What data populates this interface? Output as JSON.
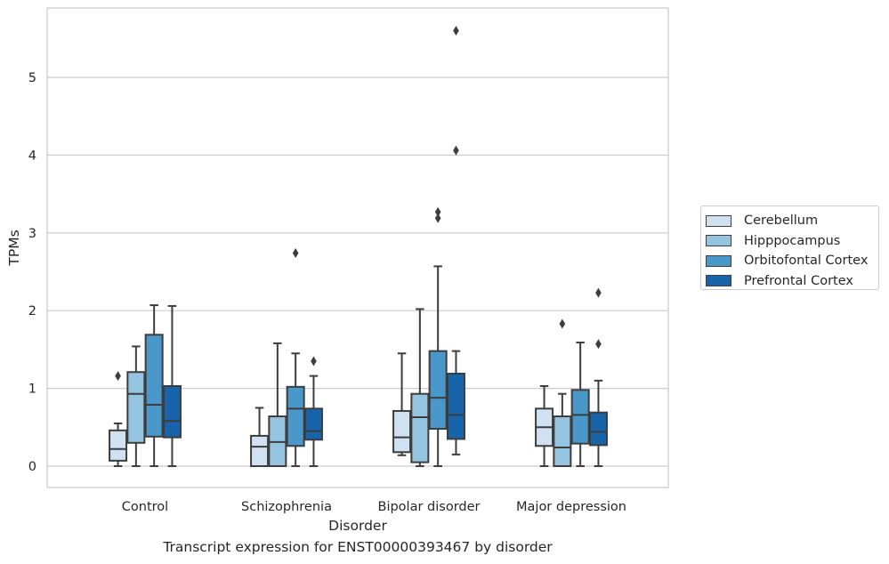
{
  "caption": "Transcript expression for ENST00000393467 by disorder",
  "chart_data": {
    "type": "boxplot",
    "title": "",
    "xlabel": "Disorder",
    "ylabel": "TPMs",
    "ylim": [
      -0.27,
      5.88
    ],
    "yticks": [
      "0",
      "1",
      "2",
      "3",
      "4",
      "5"
    ],
    "grid": "horizontal",
    "legend_position": "right",
    "categories": [
      "Control",
      "Schizophrenia",
      "Bipolar disorder",
      "Major depression"
    ],
    "series": [
      {
        "name": "Cerebellum",
        "color": "#d0e1f2",
        "boxes": [
          {
            "whisker_low": 0.0,
            "q1": 0.07,
            "median": 0.22,
            "q3": 0.46,
            "whisker_high": 0.55,
            "outliers": [
              1.16
            ]
          },
          {
            "whisker_low": 0.0,
            "q1": 0.0,
            "median": 0.25,
            "q3": 0.39,
            "whisker_high": 0.75,
            "outliers": []
          },
          {
            "whisker_low": 0.14,
            "q1": 0.18,
            "median": 0.37,
            "q3": 0.71,
            "whisker_high": 1.45,
            "outliers": []
          },
          {
            "whisker_low": 0.0,
            "q1": 0.26,
            "median": 0.5,
            "q3": 0.74,
            "whisker_high": 1.03,
            "outliers": []
          }
        ]
      },
      {
        "name": "Hipppocampus",
        "color": "#94c4df",
        "boxes": [
          {
            "whisker_low": 0.0,
            "q1": 0.3,
            "median": 0.93,
            "q3": 1.21,
            "whisker_high": 1.54,
            "outliers": []
          },
          {
            "whisker_low": 0.0,
            "q1": 0.0,
            "median": 0.31,
            "q3": 0.64,
            "whisker_high": 1.58,
            "outliers": []
          },
          {
            "whisker_low": 0.0,
            "q1": 0.05,
            "median": 0.63,
            "q3": 0.93,
            "whisker_high": 2.02,
            "outliers": []
          },
          {
            "whisker_low": 0.0,
            "q1": 0.0,
            "median": 0.24,
            "q3": 0.64,
            "whisker_high": 0.93,
            "outliers": [
              1.83
            ]
          }
        ]
      },
      {
        "name": "Orbitofontal Cortex",
        "color": "#4a98c9",
        "boxes": [
          {
            "whisker_low": 0.0,
            "q1": 0.38,
            "median": 0.79,
            "q3": 1.69,
            "whisker_high": 2.07,
            "outliers": []
          },
          {
            "whisker_low": 0.0,
            "q1": 0.26,
            "median": 0.74,
            "q3": 1.02,
            "whisker_high": 1.45,
            "outliers": [
              2.74
            ]
          },
          {
            "whisker_low": 0.0,
            "q1": 0.48,
            "median": 0.88,
            "q3": 1.48,
            "whisker_high": 2.57,
            "outliers": [
              3.19,
              3.27
            ]
          },
          {
            "whisker_low": 0.0,
            "q1": 0.29,
            "median": 0.66,
            "q3": 0.98,
            "whisker_high": 1.59,
            "outliers": []
          }
        ]
      },
      {
        "name": "Prefrontal Cortex",
        "color": "#1764ab",
        "boxes": [
          {
            "whisker_low": 0.0,
            "q1": 0.37,
            "median": 0.58,
            "q3": 1.03,
            "whisker_high": 2.06,
            "outliers": []
          },
          {
            "whisker_low": 0.0,
            "q1": 0.34,
            "median": 0.45,
            "q3": 0.74,
            "whisker_high": 1.16,
            "outliers": [
              1.35
            ]
          },
          {
            "whisker_low": 0.15,
            "q1": 0.35,
            "median": 0.66,
            "q3": 1.19,
            "whisker_high": 1.48,
            "outliers": [
              4.06,
              5.6
            ]
          },
          {
            "whisker_low": 0.0,
            "q1": 0.27,
            "median": 0.44,
            "q3": 0.69,
            "whisker_high": 1.1,
            "outliers": [
              1.57,
              2.23
            ]
          }
        ]
      }
    ]
  }
}
